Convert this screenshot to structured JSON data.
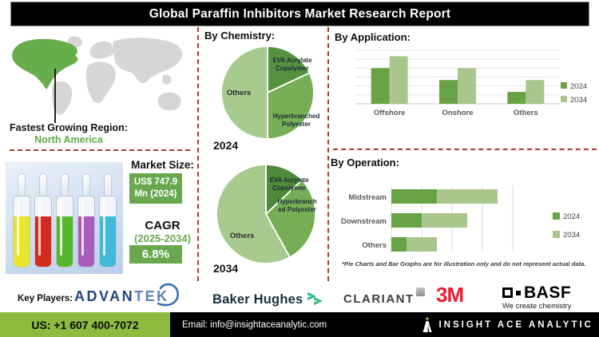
{
  "title": "Global Paraffin Inhibitors Market Research Report",
  "map": {
    "label": "Fastest Growing Region:",
    "region": "North America"
  },
  "market": {
    "heading": "Market Size:",
    "size_line1": "US$ 747.9",
    "size_line2": "Mn (2024)",
    "cagr_label": "CAGR",
    "cagr_period": "(2025-2034)",
    "cagr_value": "6.8%"
  },
  "footnote": "*Pie Charts and Bar Graphs are for illustration only and do not represent actual data.",
  "key_players": {
    "label": "Key Players:",
    "advantek_part1": "ADVAN",
    "advantek_part2": "TEK",
    "baker_hughes": "Baker Hughes",
    "clariant": "CLARIANT",
    "mmm": "3M",
    "basf": "BASF",
    "basf_tagline": "We create chemistry"
  },
  "footer": {
    "phone": "US: +1 607 400-7072",
    "email": "Email: info@insightaceanalytic.com",
    "brand": "INSIGHT ACE ANALYTIC"
  },
  "colors": {
    "series_2024": "#69a244",
    "series_2034": "#a9c68c",
    "accent_box_green": "#6aa84f",
    "footer_green": "#8cbb3f",
    "dashed_line": "#a53a2e",
    "map_highlight": "#67ad4b",
    "region_text_green": "#5faa46",
    "title_bar_bg": "#000000"
  },
  "ampoules": {
    "colors": [
      "#e6e62a",
      "#d42b1f",
      "#57b72c",
      "#a95cba",
      "#41b9da"
    ]
  },
  "chart_data": [
    {
      "type": "pie",
      "title": "By Chemistry:",
      "year_label": "2024",
      "rotation": "clockwise-from-12-oclock",
      "segments": [
        {
          "name": "EVA Acrylate Copolymer",
          "label_lines": [
            "EVA Acrylate",
            "Copolymer"
          ],
          "value": 18,
          "color": "#559140"
        },
        {
          "name": "Hyperbranched Polyester",
          "label_lines": [
            "Hyperbranched",
            "Polyester"
          ],
          "value": 32,
          "color": "#77ae55"
        },
        {
          "name": "Others",
          "label_lines": [
            "Others"
          ],
          "value": 50,
          "color": "#a7cb8e"
        }
      ]
    },
    {
      "type": "pie",
      "title": "By Chemistry:",
      "year_label": "2034",
      "rotation": "clockwise-from-12-oclock",
      "segments": [
        {
          "name": "EVA Acrylate Copolymer",
          "label_lines": [
            "EVA Acrylate",
            "Copolymer"
          ],
          "value": 13,
          "color": "#4e8a39"
        },
        {
          "name": "Hyperbranched Polyester",
          "label_lines": [
            "Hyperbranch",
            "ed Polyester"
          ],
          "value": 29,
          "color": "#77ae55"
        },
        {
          "name": "Others",
          "label_lines": [
            "Others"
          ],
          "value": 58,
          "color": "#a7cb8e"
        }
      ]
    },
    {
      "type": "grouped-bar",
      "title": "By  Application:",
      "categories": [
        "Offshore",
        "Onshore",
        "Others"
      ],
      "ylim": [
        0,
        4.5
      ],
      "grid": "horizontal",
      "legend_position": "right",
      "series": [
        {
          "name": "2024",
          "color": "#69a244",
          "values": [
            3,
            2,
            1
          ]
        },
        {
          "name": "2034",
          "color": "#a9c68c",
          "values": [
            4,
            3,
            2
          ]
        }
      ]
    },
    {
      "type": "stacked-hbar",
      "title": "By Operation:",
      "categories": [
        "Midstream",
        "Downstream",
        "Others"
      ],
      "xlim": [
        0,
        4.2
      ],
      "grid": "vertical",
      "legend_position": "right",
      "series": [
        {
          "name": "2024",
          "color": "#69a244",
          "values": [
            1.5,
            1,
            0.5
          ]
        },
        {
          "name": "2034",
          "color": "#a9c68c",
          "values": [
            2,
            1.5,
            1
          ]
        }
      ]
    }
  ]
}
